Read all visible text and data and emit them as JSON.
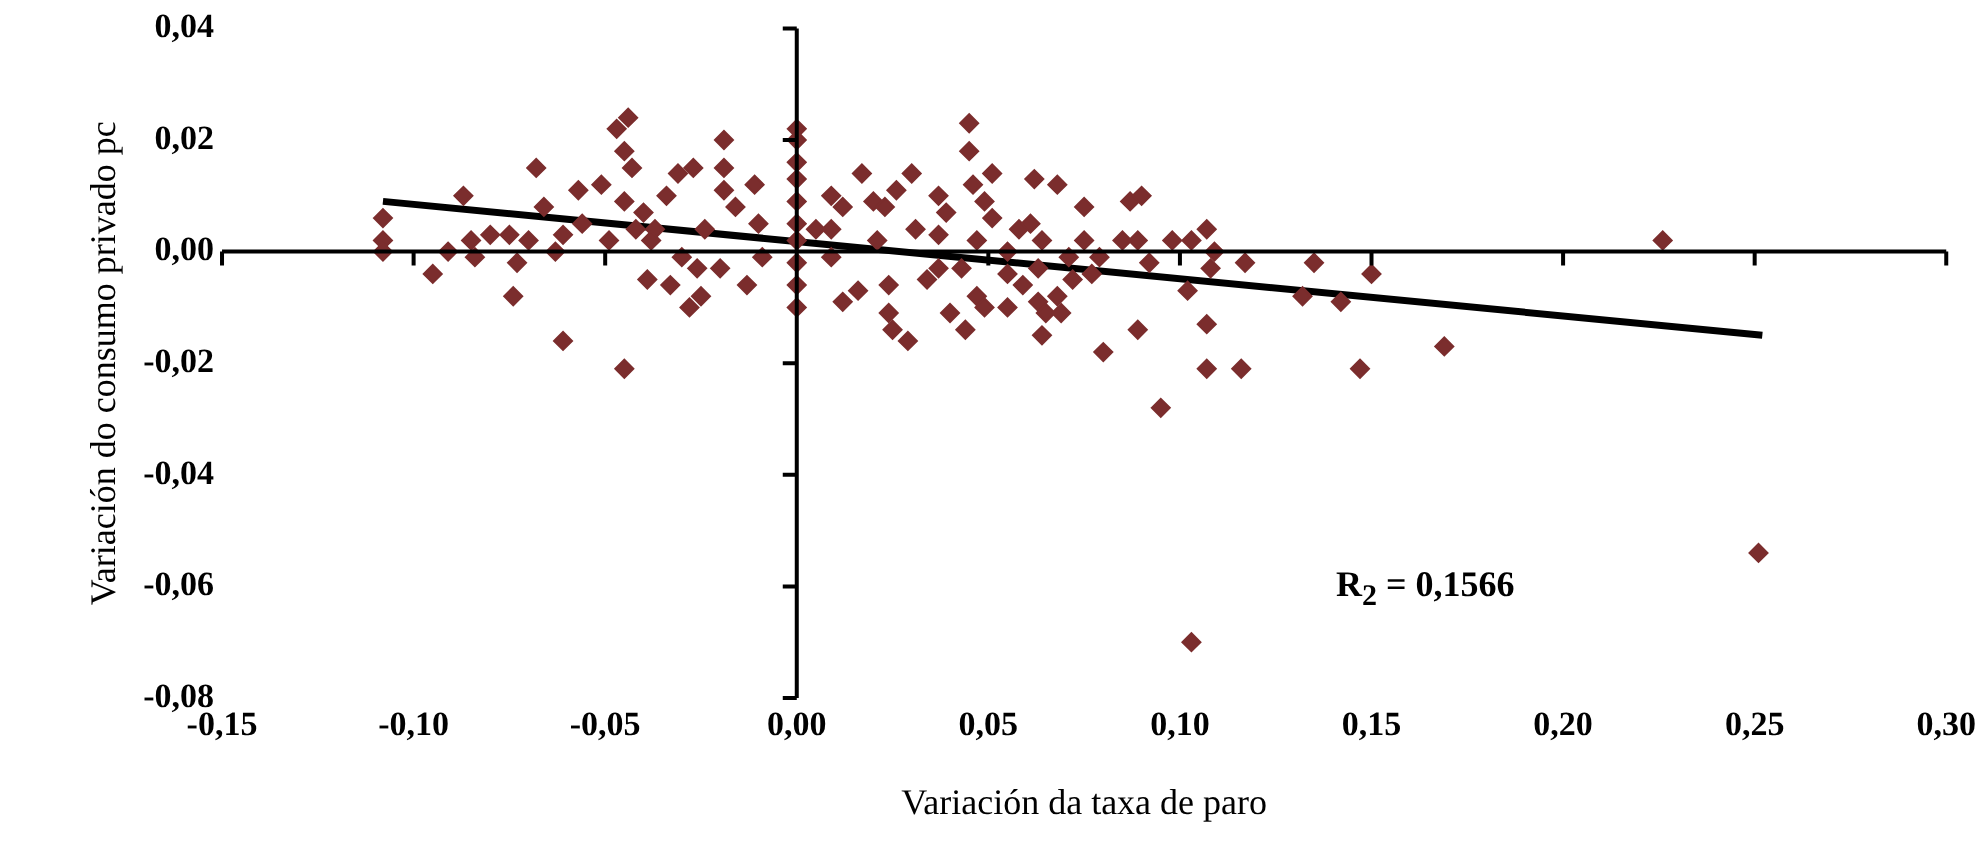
{
  "chart_data": {
    "type": "scatter",
    "xlabel": "Variación da taxa de paro",
    "ylabel": "Variación do consumo privado pc",
    "annotations": [
      "R$_{2}$ = 0,1566"
    ],
    "xlim": [
      -0.15,
      0.3
    ],
    "xticks": [
      {
        "value": -0.15,
        "label": "-0,15"
      },
      {
        "value": -0.1,
        "label": "-0,10"
      },
      {
        "value": -0.05,
        "label": "-0,05"
      },
      {
        "value": 0,
        "label": "0,00"
      },
      {
        "value": 0.05,
        "label": "0,05"
      },
      {
        "value": 0.1,
        "label": "0,10"
      },
      {
        "value": 0.15,
        "label": "0,15"
      },
      {
        "value": 0.2,
        "label": "0,20"
      },
      {
        "value": 0.25,
        "label": "0,25"
      },
      {
        "value": 0.3,
        "label": "0,30"
      }
    ],
    "ylim": [
      -0.08,
      0.04
    ],
    "yticks": [
      {
        "value": -0.08,
        "label": "-0,08"
      },
      {
        "value": -0.06,
        "label": "-0,06"
      },
      {
        "value": -0.04,
        "label": "-0,04"
      },
      {
        "value": -0.02,
        "label": "-0,02"
      },
      {
        "value": 0,
        "label": "0,00"
      },
      {
        "value": 0.02,
        "label": "0,02"
      },
      {
        "value": 0.04,
        "label": "0,04"
      }
    ],
    "legend": false,
    "marker": "diamond",
    "series": [
      {
        "type": "scatter",
        "color": "#7b2d2d",
        "x": [
          -0.108,
          -0.108,
          -0.108,
          -0.095,
          -0.091,
          -0.087,
          -0.085,
          -0.084,
          -0.08,
          -0.075,
          -0.073,
          -0.074,
          -0.07,
          -0.068,
          -0.066,
          -0.063,
          -0.061,
          -0.061,
          -0.057,
          -0.056,
          -0.051,
          -0.049,
          -0.047,
          -0.044,
          -0.045,
          -0.043,
          -0.045,
          -0.045,
          -0.04,
          -0.039,
          -0.037,
          -0.034,
          -0.033,
          -0.031,
          -0.028,
          -0.027,
          -0.025,
          -0.024,
          -0.019,
          -0.019,
          -0.019,
          -0.02,
          -0.016,
          -0.013,
          -0.011,
          -0.009,
          -0.01,
          -0.03,
          -0.026,
          -0.038,
          -0.042,
          0,
          0,
          0,
          0,
          0,
          0,
          0,
          0,
          0,
          0,
          0.009,
          0.012,
          0.009,
          0.009,
          0.012,
          0.016,
          0.017,
          0.02,
          0.021,
          0.023,
          0.024,
          0.025,
          0.029,
          0.024,
          0.026,
          0.03,
          0.031,
          0.034,
          0.037,
          0.037,
          0.039,
          0.04,
          0.044,
          0.045,
          0.045,
          0.046,
          0.047,
          0.047,
          0.049,
          0.051,
          0.049,
          0.051,
          0.055,
          0.055,
          0.055,
          0.058,
          0.059,
          0.061,
          0.062,
          0.063,
          0.063,
          0.064,
          0.064,
          0.065,
          0.068,
          0.068,
          0.069,
          0.071,
          0.072,
          0.075,
          0.075,
          0.077,
          0.079,
          0.08,
          0.085,
          0.087,
          0.089,
          0.09,
          0.089,
          0.092,
          0.095,
          0.098,
          0.102,
          0.103,
          0.107,
          0.107,
          0.107,
          0.109,
          0.108,
          0.116,
          0.117,
          0.132,
          0.135,
          0.142,
          0.147,
          0.15,
          0.103,
          0.169,
          0.226,
          0.251,
          0.005,
          0.037,
          0.043
        ],
        "values": [
          0.006,
          0.002,
          0,
          -0.004,
          0,
          0.01,
          0.002,
          -0.001,
          0.003,
          0.003,
          -0.002,
          -0.008,
          0.002,
          0.015,
          0.008,
          0,
          0.003,
          -0.016,
          0.011,
          0.005,
          0.012,
          0.002,
          0.022,
          0.024,
          0.018,
          0.015,
          -0.021,
          0.009,
          0.007,
          -0.005,
          0.004,
          0.01,
          -0.006,
          0.014,
          -0.01,
          0.015,
          -0.008,
          0.004,
          0.02,
          0.015,
          0.011,
          -0.003,
          0.008,
          -0.006,
          0.012,
          -0.001,
          0.005,
          -0.001,
          -0.003,
          0.002,
          0.004,
          0.022,
          0.02,
          0.016,
          0.013,
          0.009,
          0.005,
          0.002,
          -0.002,
          -0.006,
          -0.01,
          0.01,
          0.008,
          0.004,
          -0.001,
          -0.009,
          -0.007,
          0.014,
          0.009,
          0.002,
          0.008,
          -0.006,
          -0.014,
          -0.016,
          -0.011,
          0.011,
          0.014,
          0.004,
          -0.005,
          0.01,
          0.003,
          0.007,
          -0.011,
          -0.014,
          0.023,
          0.018,
          0.012,
          0.002,
          -0.008,
          0.009,
          0.014,
          -0.01,
          0.006,
          0,
          -0.004,
          -0.01,
          0.004,
          -0.006,
          0.005,
          0.013,
          -0.003,
          -0.009,
          -0.015,
          0.002,
          -0.011,
          -0.008,
          0.012,
          -0.011,
          -0.001,
          -0.005,
          0.008,
          0.002,
          -0.004,
          -0.001,
          -0.018,
          0.002,
          0.009,
          -0.014,
          0.01,
          0.002,
          -0.002,
          -0.028,
          0.002,
          -0.007,
          0.002,
          0.004,
          -0.013,
          -0.021,
          0,
          -0.003,
          -0.021,
          -0.002,
          -0.008,
          -0.002,
          -0.009,
          -0.021,
          -0.004,
          -0.07,
          -0.017,
          0.002,
          -0.054,
          0.004,
          -0.003,
          -0.003
        ]
      },
      {
        "type": "line",
        "color": "#000000",
        "marker": "none",
        "x": [
          -0.108,
          0.252
        ],
        "values": [
          0.009,
          -0.015
        ]
      }
    ]
  }
}
